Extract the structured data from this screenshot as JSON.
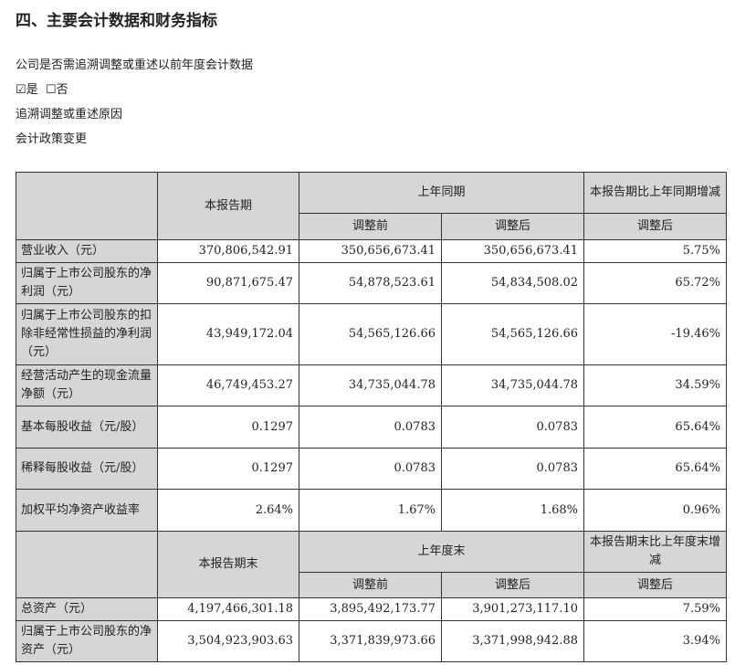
{
  "title": "四、主要会计数据和财务指标",
  "question": "公司是否需追溯调整或重述以前年度会计数据",
  "options": {
    "yes_label": "是",
    "no_label": "否",
    "yes_checked": true,
    "no_checked": false,
    "yes_box": "☑",
    "no_box": "☐"
  },
  "reason_label": "追溯调整或重述原因",
  "reason": "会计政策变更",
  "header1": {
    "current": "本报告期",
    "prior": "上年同期",
    "change": "本报告期比上年同期增减",
    "before": "调整前",
    "after": "调整后",
    "change_after": "调整后"
  },
  "rows1": [
    {
      "label": "营业收入（元）",
      "cur": "370,806,542.91",
      "before": "350,656,673.41",
      "after": "350,656,673.41",
      "chg": "5.75%"
    },
    {
      "label": "归属于上市公司股东的净利润（元）",
      "cur": "90,871,675.47",
      "before": "54,878,523.61",
      "after": "54,834,508.02",
      "chg": "65.72%"
    },
    {
      "label": "归属于上市公司股东的扣除非经常性损益的净利润（元）",
      "cur": "43,949,172.04",
      "before": "54,565,126.66",
      "after": "54,565,126.66",
      "chg": "-19.46%"
    },
    {
      "label": "经营活动产生的现金流量净额（元）",
      "cur": "46,749,453.27",
      "before": "34,735,044.78",
      "after": "34,735,044.78",
      "chg": "34.59%"
    },
    {
      "label": "基本每股收益（元/股）",
      "cur": "0.1297",
      "before": "0.0783",
      "after": "0.0783",
      "chg": "65.64%"
    },
    {
      "label": "稀释每股收益（元/股）",
      "cur": "0.1297",
      "before": "0.0783",
      "after": "0.0783",
      "chg": "65.64%"
    },
    {
      "label": "加权平均净资产收益率",
      "cur": "2.64%",
      "before": "1.67%",
      "after": "1.68%",
      "chg": "0.96%"
    }
  ],
  "header2": {
    "current": "本报告期末",
    "prior": "上年度末",
    "change": "本报告期末比上年度末增减",
    "before": "调整前",
    "after": "调整后",
    "change_after": "调整后"
  },
  "rows2": [
    {
      "label": "总资产（元）",
      "cur": "4,197,466,301.18",
      "before": "3,895,492,173.77",
      "after": "3,901,273,117.10",
      "chg": "7.59%"
    },
    {
      "label": "归属于上市公司股东的净资产（元）",
      "cur": "3,504,923,903.63",
      "before": "3,371,839,973.66",
      "after": "3,371,998,942.88",
      "chg": "3.94%"
    }
  ]
}
